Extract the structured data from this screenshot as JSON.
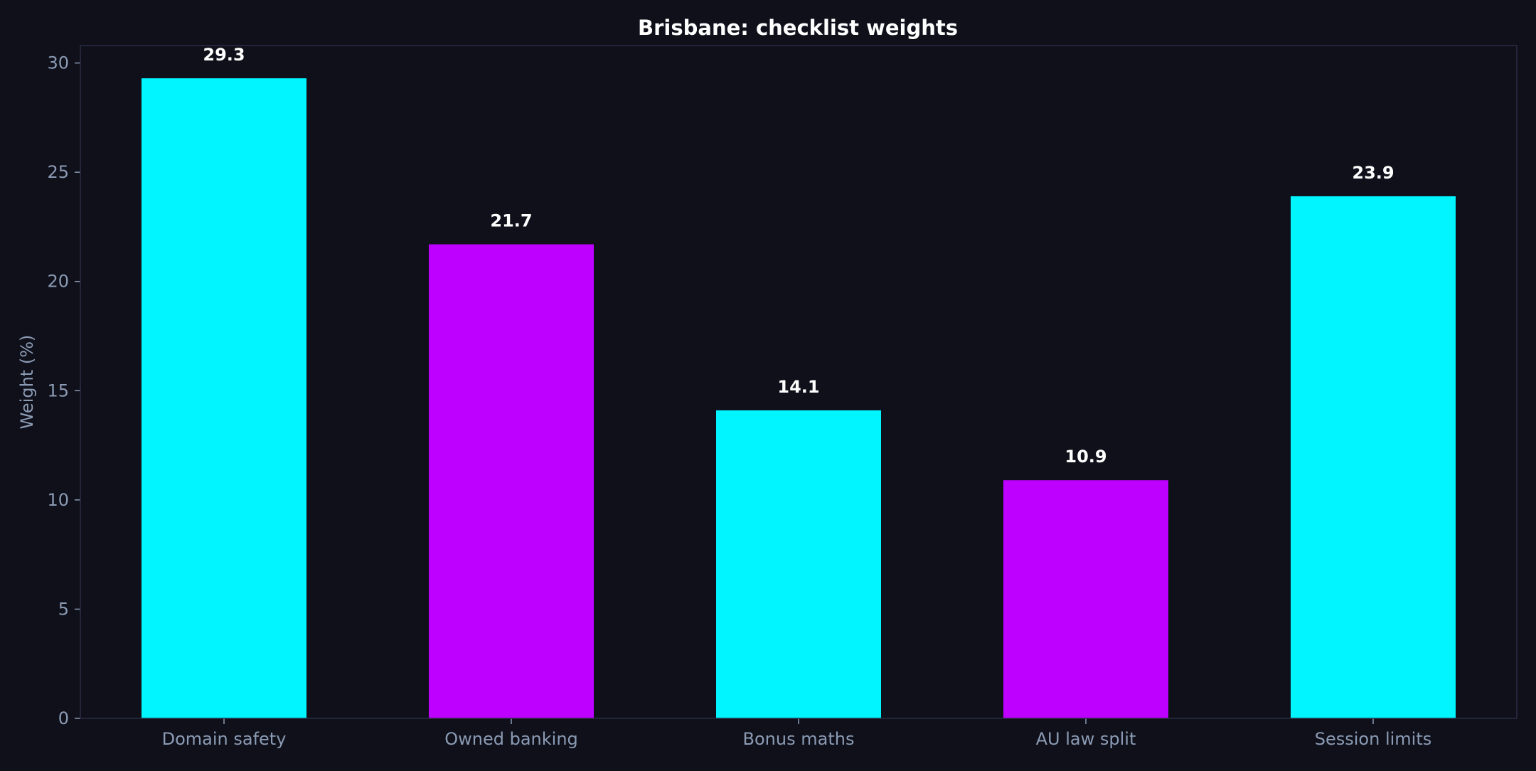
{
  "colors": {
    "background": "#0f101a",
    "frame": "#2a2d45",
    "tick_text": "#8b9bb4",
    "title_text": "#ffffff",
    "bar_cyan": "#00f5ff",
    "bar_magenta": "#bd00ff"
  },
  "chart_data": {
    "type": "bar",
    "title": "Brisbane: checklist weights",
    "xlabel": "",
    "ylabel": "Weight (%)",
    "ylim": [
      0,
      30.8
    ],
    "yticks": [
      0,
      5,
      10,
      15,
      20,
      25,
      30
    ],
    "grid": false,
    "categories": [
      "Domain safety",
      "Owned banking",
      "Bonus maths",
      "AU law split",
      "Session limits"
    ],
    "values": [
      29.3,
      21.7,
      14.1,
      10.9,
      23.9
    ],
    "value_labels": [
      "29.3",
      "21.7",
      "14.1",
      "10.9",
      "23.9"
    ],
    "bar_colors": [
      "#00f5ff",
      "#bd00ff",
      "#00f5ff",
      "#bd00ff",
      "#00f5ff"
    ]
  }
}
